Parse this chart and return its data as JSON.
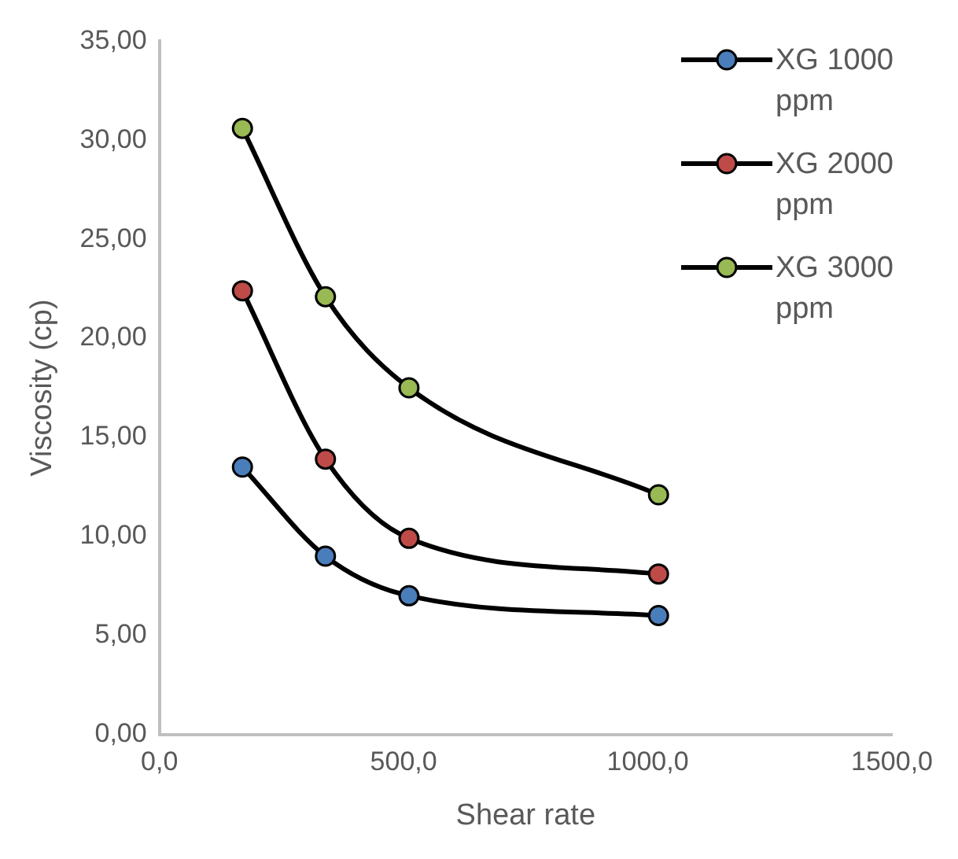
{
  "chart_data": {
    "type": "line",
    "xlabel": "Shear rate",
    "ylabel": "Viscosity (cp)",
    "xlim": [
      0,
      1500
    ],
    "xticks": [
      {
        "value": 0,
        "label": "0,0"
      },
      {
        "value": 500,
        "label": "500,0"
      },
      {
        "value": 1000,
        "label": "1000,0"
      },
      {
        "value": 1500,
        "label": "1500,0"
      }
    ],
    "ylim": [
      0,
      35
    ],
    "yticks": [
      {
        "value": 0,
        "label": "0,00"
      },
      {
        "value": 5,
        "label": "5,00"
      },
      {
        "value": 10,
        "label": "10,00"
      },
      {
        "value": 15,
        "label": "15,00"
      },
      {
        "value": 20,
        "label": "20,00"
      },
      {
        "value": 25,
        "label": "25,00"
      },
      {
        "value": 30,
        "label": "30,00"
      },
      {
        "value": 35,
        "label": "35,00"
      }
    ],
    "x": [
      170,
      340,
      511,
      1022
    ],
    "series": [
      {
        "name": "XG 1000 ppm",
        "color": "#4a7ebb",
        "values": [
          13.5,
          9.0,
          7.0,
          6.0
        ]
      },
      {
        "name": "XG 2000 ppm",
        "color": "#be4b48",
        "values": [
          22.4,
          13.9,
          9.9,
          8.1
        ]
      },
      {
        "name": "XG 3000 ppm",
        "color": "#98b954",
        "values": [
          30.6,
          22.1,
          17.5,
          12.1
        ]
      }
    ],
    "grid": false,
    "legend": "top right",
    "marker": "circle",
    "line_style": "solid"
  }
}
